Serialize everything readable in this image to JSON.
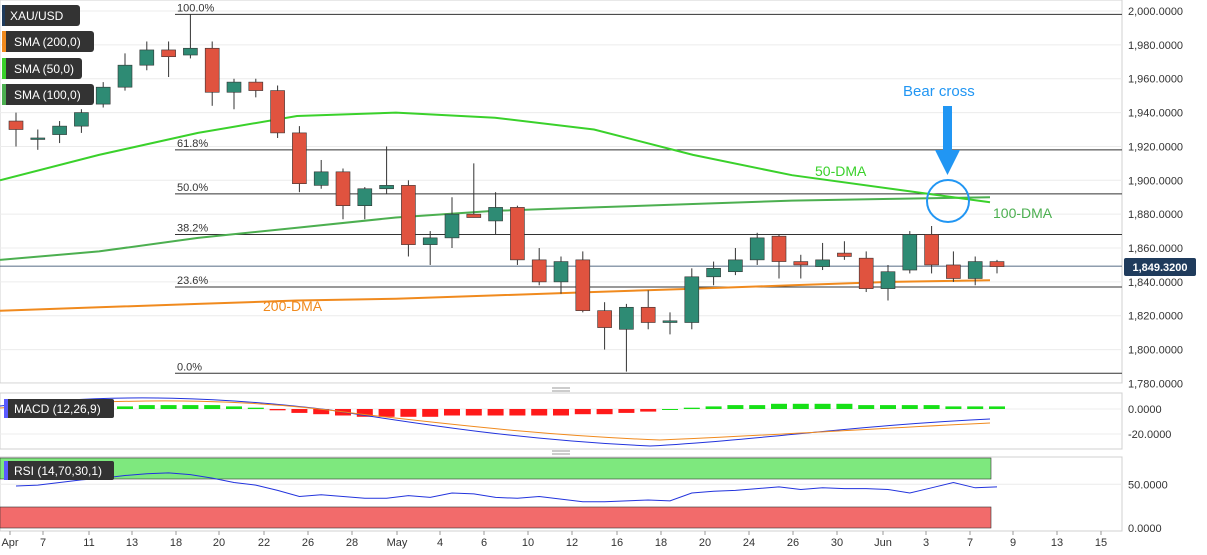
{
  "symbol": "XAU/USD",
  "colors": {
    "up": "#2e8b74",
    "down": "#e0533f",
    "sma200": "#f08a1e",
    "sma50": "#3ad12b",
    "sma100": "#4caf50",
    "annotation_blue": "#2196f3",
    "macd_pos": "#17e017",
    "macd_neg": "#ff1a1a",
    "rsi_over": "#7ee87e",
    "rsi_under": "#f26b6b",
    "price_tag": "#1f3b5c"
  },
  "indicators": [
    {
      "id": "sma200",
      "label": "SMA (200,0)",
      "color": "#f08a1e"
    },
    {
      "id": "sma50",
      "label": "SMA (50,0)",
      "color": "#3ad12b"
    },
    {
      "id": "sma100",
      "label": "SMA (100,0)",
      "color": "#4caf50"
    }
  ],
  "last_price": "1,849.3200",
  "annotations": {
    "bear_cross": "Bear cross",
    "dma50": "50-DMA",
    "dma100": "100-DMA",
    "dma200": "200-DMA"
  },
  "fib_levels": [
    {
      "label": "100.0%",
      "price": 1998
    },
    {
      "label": "61.8%",
      "price": 1918
    },
    {
      "label": "50.0%",
      "price": 1892
    },
    {
      "label": "38.2%",
      "price": 1868
    },
    {
      "label": "23.6%",
      "price": 1837
    },
    {
      "label": "0.0%",
      "price": 1786
    }
  ],
  "macd": {
    "label": "MACD (12,26,9)",
    "ticks": [
      "0.0000",
      "-20.0000"
    ]
  },
  "rsi": {
    "label": "RSI (14,70,30,1)",
    "ticks": [
      "50.0000",
      "0.0000"
    ]
  },
  "chart_data": {
    "type": "candlestick",
    "y_axis_ticks": [
      "2,000.0000",
      "1,980.0000",
      "1,960.0000",
      "1,940.0000",
      "1,920.0000",
      "1,900.0000",
      "1,880.0000",
      "1,860.0000",
      "1,840.0000",
      "1,820.0000",
      "1,800.0000",
      "1,780.0000"
    ],
    "ylim": [
      1776,
      2002
    ],
    "x_labels": [
      "Apr",
      "7",
      "11",
      "13",
      "18",
      "20",
      "22",
      "26",
      "28",
      "May",
      "4",
      "6",
      "10",
      "12",
      "16",
      "18",
      "20",
      "24",
      "26",
      "30",
      "Jun",
      "3",
      "7",
      "9",
      "13",
      "15"
    ],
    "candles": [
      {
        "o": 1935,
        "h": 1940,
        "l": 1920,
        "c": 1930
      },
      {
        "o": 1925,
        "h": 1930,
        "l": 1918,
        "c": 1925
      },
      {
        "o": 1927,
        "h": 1935,
        "l": 1922,
        "c": 1932
      },
      {
        "o": 1932,
        "h": 1942,
        "l": 1928,
        "c": 1940
      },
      {
        "o": 1945,
        "h": 1958,
        "l": 1943,
        "c": 1955
      },
      {
        "o": 1955,
        "h": 1975,
        "l": 1953,
        "c": 1968
      },
      {
        "o": 1968,
        "h": 1982,
        "l": 1965,
        "c": 1977
      },
      {
        "o": 1977,
        "h": 1982,
        "l": 1961,
        "c": 1973
      },
      {
        "o": 1974,
        "h": 1998,
        "l": 1972,
        "c": 1978
      },
      {
        "o": 1978,
        "h": 1982,
        "l": 1944,
        "c": 1952
      },
      {
        "o": 1952,
        "h": 1960,
        "l": 1942,
        "c": 1958
      },
      {
        "o": 1958,
        "h": 1960,
        "l": 1949,
        "c": 1953
      },
      {
        "o": 1953,
        "h": 1956,
        "l": 1925,
        "c": 1928
      },
      {
        "o": 1928,
        "h": 1932,
        "l": 1893,
        "c": 1898
      },
      {
        "o": 1897,
        "h": 1912,
        "l": 1895,
        "c": 1905
      },
      {
        "o": 1905,
        "h": 1907,
        "l": 1877,
        "c": 1885
      },
      {
        "o": 1885,
        "h": 1896,
        "l": 1877,
        "c": 1895
      },
      {
        "o": 1895,
        "h": 1920,
        "l": 1892,
        "c": 1897
      },
      {
        "o": 1897,
        "h": 1900,
        "l": 1855,
        "c": 1862
      },
      {
        "o": 1862,
        "h": 1870,
        "l": 1850,
        "c": 1866
      },
      {
        "o": 1866,
        "h": 1890,
        "l": 1860,
        "c": 1880
      },
      {
        "o": 1880,
        "h": 1910,
        "l": 1878,
        "c": 1878
      },
      {
        "o": 1876,
        "h": 1893,
        "l": 1868,
        "c": 1884
      },
      {
        "o": 1884,
        "h": 1885,
        "l": 1850,
        "c": 1853
      },
      {
        "o": 1853,
        "h": 1860,
        "l": 1838,
        "c": 1840
      },
      {
        "o": 1840,
        "h": 1855,
        "l": 1833,
        "c": 1852
      },
      {
        "o": 1853,
        "h": 1858,
        "l": 1822,
        "c": 1823
      },
      {
        "o": 1823,
        "h": 1828,
        "l": 1800,
        "c": 1813
      },
      {
        "o": 1812,
        "h": 1827,
        "l": 1787,
        "c": 1825
      },
      {
        "o": 1825,
        "h": 1835,
        "l": 1812,
        "c": 1816
      },
      {
        "o": 1816,
        "h": 1822,
        "l": 1809,
        "c": 1817
      },
      {
        "o": 1816,
        "h": 1848,
        "l": 1812,
        "c": 1843
      },
      {
        "o": 1843,
        "h": 1852,
        "l": 1838,
        "c": 1848
      },
      {
        "o": 1846,
        "h": 1860,
        "l": 1844,
        "c": 1853
      },
      {
        "o": 1853,
        "h": 1869,
        "l": 1850,
        "c": 1866
      },
      {
        "o": 1867,
        "h": 1868,
        "l": 1842,
        "c": 1852
      },
      {
        "o": 1852,
        "h": 1856,
        "l": 1842,
        "c": 1850
      },
      {
        "o": 1849,
        "h": 1863,
        "l": 1847,
        "c": 1853
      },
      {
        "o": 1857,
        "h": 1864,
        "l": 1853,
        "c": 1855
      },
      {
        "o": 1854,
        "h": 1858,
        "l": 1834,
        "c": 1836
      },
      {
        "o": 1836,
        "h": 1850,
        "l": 1829,
        "c": 1846
      },
      {
        "o": 1847,
        "h": 1870,
        "l": 1845,
        "c": 1868
      },
      {
        "o": 1868,
        "h": 1873,
        "l": 1845,
        "c": 1850
      },
      {
        "o": 1850,
        "h": 1858,
        "l": 1840,
        "c": 1842
      },
      {
        "o": 1842,
        "h": 1855,
        "l": 1838,
        "c": 1852
      },
      {
        "o": 1852,
        "h": 1853,
        "l": 1845,
        "c": 1849
      }
    ],
    "sma200": [
      1823,
      1825,
      1827,
      1829,
      1830,
      1832,
      1834,
      1836,
      1838,
      1840,
      1841
    ],
    "sma50": [
      1900,
      1915,
      1928,
      1938,
      1940,
      1937,
      1930,
      1915,
      1903,
      1895,
      1887
    ],
    "sma100": [
      1853,
      1858,
      1866,
      1872,
      1878,
      1882,
      1884,
      1886,
      1888,
      1889,
      1890
    ],
    "macd_hist": [
      0,
      0,
      0,
      1,
      2,
      2,
      3,
      3,
      3,
      3,
      2,
      1,
      -1,
      -3,
      -4,
      -5,
      -6,
      -6,
      -6,
      -6,
      -5,
      -5,
      -5,
      -5,
      -5,
      -5,
      -4,
      -4,
      -3,
      -2,
      0,
      1,
      2,
      3,
      3,
      4,
      4,
      4,
      4,
      3,
      3,
      3,
      3,
      2,
      2,
      2
    ],
    "rsi_values": [
      48,
      49,
      52,
      55,
      57,
      60,
      62,
      63,
      61,
      57,
      52,
      49,
      43,
      36,
      38,
      36,
      34,
      34,
      37,
      35,
      40,
      39,
      35,
      34,
      36,
      33,
      30,
      30,
      31,
      32,
      31,
      40,
      42,
      43,
      45,
      47,
      44,
      46,
      45,
      45,
      44,
      40,
      46,
      52,
      46,
      47
    ]
  }
}
